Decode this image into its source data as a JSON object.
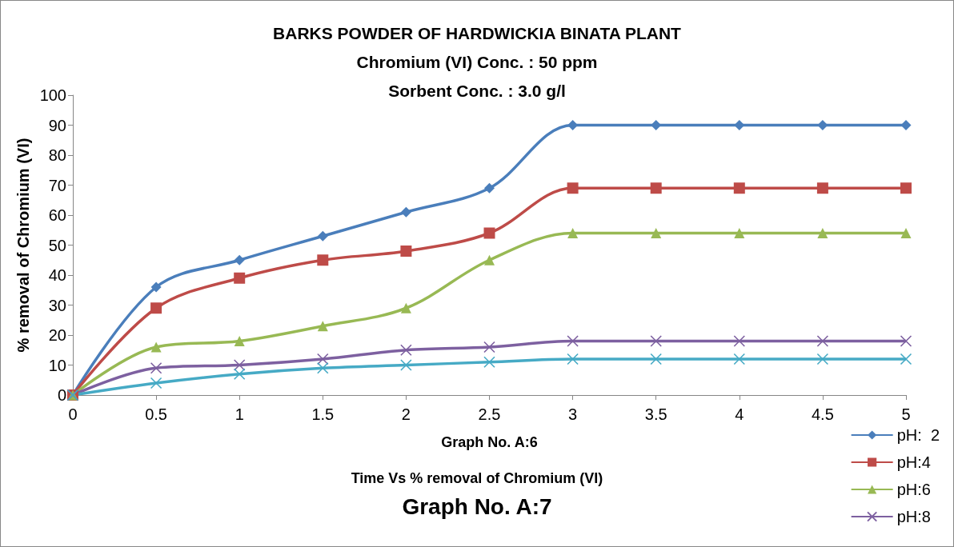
{
  "chart_data": {
    "type": "line",
    "title": "BARKS POWDER OF HARDWICKIA BINATA PLANT",
    "subtitle": "Chromium (VI) Conc. : 50 ppm\nSorbent Conc. : 3.0 g/l",
    "xlabel": "Graph No. A:6",
    "ylabel": "% removal of Chromium (VI)",
    "annotations": [
      "Time Vs % removal of Chromium (VI)",
      "Graph No. A:7"
    ],
    "x": [
      0,
      0.5,
      1,
      1.5,
      2,
      2.5,
      3,
      3.5,
      4,
      4.5,
      5
    ],
    "series": [
      {
        "name": "pH:  2",
        "color": "#4a7ebb",
        "marker": "diamond",
        "values": [
          0,
          36,
          45,
          53,
          61,
          69,
          90,
          90,
          90,
          90,
          90
        ]
      },
      {
        "name": "pH:4",
        "color": "#be4b48",
        "marker": "square",
        "values": [
          0,
          29,
          39,
          45,
          48,
          54,
          69,
          69,
          69,
          69,
          69
        ]
      },
      {
        "name": "pH:6",
        "color": "#98b954",
        "marker": "triangle",
        "values": [
          0,
          16,
          18,
          23,
          29,
          45,
          54,
          54,
          54,
          54,
          54
        ]
      },
      {
        "name": "pH:8",
        "color": "#7d60a0",
        "marker": "cross",
        "values": [
          0,
          9,
          10,
          12,
          15,
          16,
          18,
          18,
          18,
          18,
          18
        ]
      },
      {
        "color": "#46aac5",
        "marker": "cross",
        "values": [
          0,
          4,
          7,
          9,
          10,
          11,
          12,
          12,
          12,
          12,
          12
        ]
      }
    ],
    "xlim": [
      0,
      5
    ],
    "xticks": [
      0,
      0.5,
      1,
      1.5,
      2,
      2.5,
      3,
      3.5,
      4,
      4.5,
      5
    ],
    "ylim": [
      0,
      100
    ],
    "yticks": [
      0,
      10,
      20,
      30,
      40,
      50,
      60,
      70,
      80,
      90,
      100
    ],
    "grid": false,
    "legend": "bottom right",
    "line_style": "solid"
  }
}
